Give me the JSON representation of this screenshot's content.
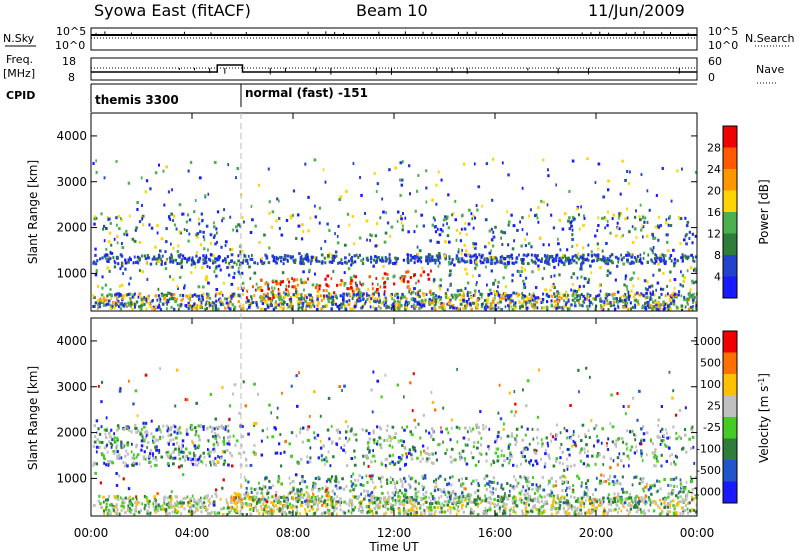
{
  "header": {
    "title": "Syowa East (fitACF)",
    "beam": "Beam 10",
    "date": "11/Jun/2009"
  },
  "top_panels": {
    "nsky_label": "N.Sky",
    "nsky_top_tick": "10^5",
    "nsky_bottom_tick": "10^0",
    "nsearch_label": "N.Search",
    "nsearch_top_tick": "10^5",
    "nsearch_bottom_tick": "10^0",
    "freq_label_1": "Freq.",
    "freq_label_2": "[MHz]",
    "freq_top_tick": "18",
    "freq_bottom_tick": "8",
    "nave_label": "Nave",
    "nave_top_tick": "60",
    "nave_bottom_tick": "0",
    "cpid_label": "CPID",
    "cpid_segments": [
      {
        "name": "themis 3300",
        "start_hour": 0,
        "end_hour": 6
      },
      {
        "name": "normal (fast) -151",
        "start_hour": 6,
        "end_hour": 24
      }
    ]
  },
  "x_axis": {
    "label": "Time UT",
    "ticks": [
      "00:00",
      "04:00",
      "08:00",
      "12:00",
      "16:00",
      "20:00",
      "00:00"
    ],
    "tick_hours": [
      0,
      4,
      8,
      12,
      16,
      20,
      24
    ]
  },
  "y_axis": {
    "label": "Slant Range [km]",
    "ticks": [
      "1000",
      "2000",
      "3000",
      "4000"
    ],
    "tick_values": [
      1000,
      2000,
      3000,
      4000
    ],
    "range": [
      180,
      4500
    ]
  },
  "power_colorbar": {
    "label": "Power [dB]",
    "ticks": [
      "4",
      "8",
      "12",
      "16",
      "20",
      "24",
      "28"
    ],
    "colors": [
      "#1a1aff",
      "#2244cc",
      "#2e7d3c",
      "#4caf50",
      "#ffd400",
      "#ff9800",
      "#ff5a00",
      "#f00000"
    ]
  },
  "velocity_colorbar": {
    "label": "Velocity [m s",
    "label_sup": "-1",
    "label_end": "]",
    "ticks": [
      "1000",
      "500",
      "100",
      "25",
      "-25",
      "-100",
      "-500",
      "-1000"
    ],
    "colors": [
      "#1a1aff",
      "#2255cc",
      "#2e7d3c",
      "#44cc22",
      "#c0c0c0",
      "#ffc000",
      "#ff7000",
      "#f00000"
    ]
  },
  "chart_data": {
    "type": "heatmap",
    "x_unit": "hours UT",
    "y_unit": "km",
    "power_features": [
      {
        "t_start": 0.1,
        "t_end": 23.9,
        "r_start": 180,
        "r_end": 500,
        "level": "low-to-high"
      },
      {
        "t_start": 6.0,
        "t_end": 13.0,
        "r_start": 300,
        "r_end": 900,
        "level": "high (24-28 dB)"
      },
      {
        "t_start": 0.1,
        "t_end": 23.9,
        "r_start": 1200,
        "r_end": 1400,
        "level": "low (4-8 dB)"
      }
    ],
    "velocity_features": [
      {
        "t_start": 3.0,
        "t_end": 14.0,
        "r_start": 200,
        "r_end": 900,
        "level": "near zero (-25 to 25)"
      },
      {
        "t_start": 8.0,
        "t_end": 23.0,
        "r_start": 400,
        "r_end": 1100,
        "level": "positive (100)"
      },
      {
        "t_start": 6.0,
        "t_end": 9.0,
        "r_start": 200,
        "r_end": 700,
        "level": "negative (-100)"
      }
    ]
  }
}
